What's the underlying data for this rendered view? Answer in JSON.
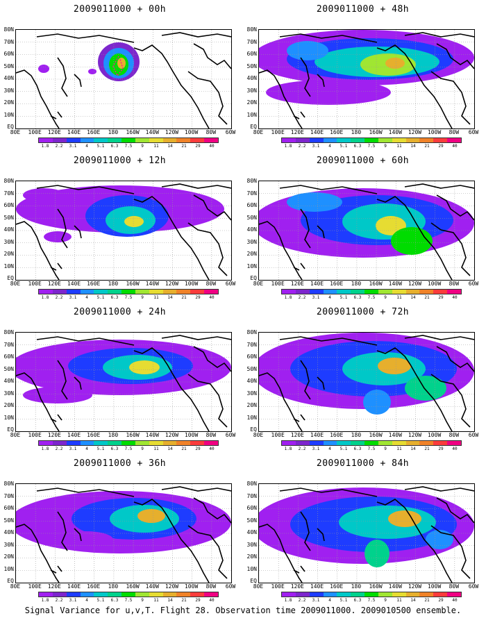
{
  "panels": [
    {
      "title": "2009011000 + 00h"
    },
    {
      "title": "2009011000 + 48h"
    },
    {
      "title": "2009011000 + 12h"
    },
    {
      "title": "2009011000 + 60h"
    },
    {
      "title": "2009011000 + 24h"
    },
    {
      "title": "2009011000 + 72h"
    },
    {
      "title": "2009011000 + 36h"
    },
    {
      "title": "2009011000 + 84h"
    }
  ],
  "lat_labels": [
    "80N",
    "70N",
    "60N",
    "50N",
    "40N",
    "30N",
    "20N",
    "10N",
    "EQ"
  ],
  "lon_labels": [
    "80E",
    "100E",
    "120E",
    "140E",
    "160E",
    "180",
    "160W",
    "140W",
    "120W",
    "100W",
    "80W",
    "60W"
  ],
  "colorbar": {
    "colors": [
      "#a020f0",
      "#7d26cd",
      "#1e3cff",
      "#1e90ff",
      "#00c8c8",
      "#00d28c",
      "#00dc00",
      "#a0e632",
      "#e6dc32",
      "#e6af2d",
      "#f08228",
      "#fa3c3c",
      "#f00082"
    ],
    "labels": [
      "1.8",
      "2.2",
      "3.1",
      "4",
      "5.1",
      "6.3",
      "7.5",
      "9",
      "11",
      "14",
      "21",
      "29",
      "40"
    ]
  },
  "caption": "Signal Variance for u,v,T. Flight 28. Observation time 2009011000. 2009010500 ensemble."
}
